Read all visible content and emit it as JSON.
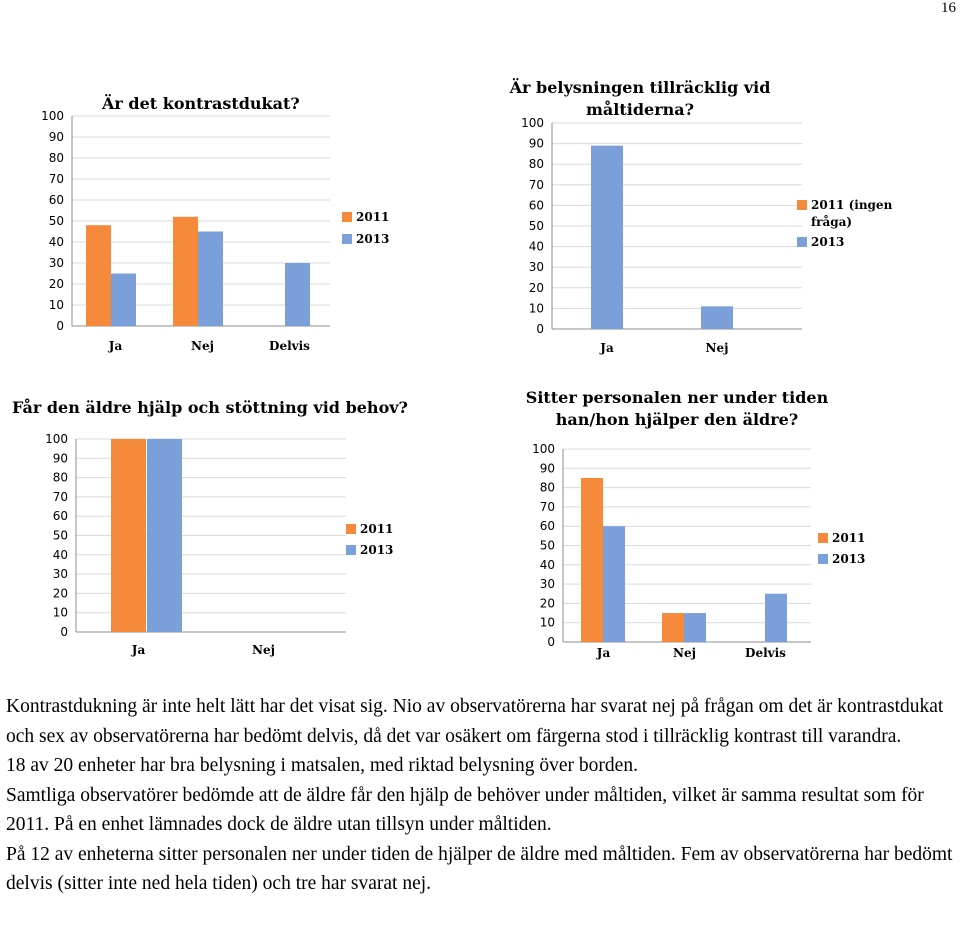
{
  "page": {
    "number": "16"
  },
  "colors": {
    "series2011": "#f58b3a",
    "series2013": "#7b9fd8"
  },
  "chart_data": [
    {
      "type": "bar",
      "title": "Är det kontrastdukat?",
      "categories": [
        "Ja",
        "Nej",
        "Delvis"
      ],
      "series": [
        {
          "name": "2011",
          "values": [
            48,
            52,
            null
          ]
        },
        {
          "name": "2013",
          "values": [
            25,
            45,
            30
          ]
        }
      ],
      "ylim": [
        0,
        100
      ],
      "yticks": [
        0,
        10,
        20,
        30,
        40,
        50,
        60,
        70,
        80,
        90,
        100
      ],
      "legend": "right"
    },
    {
      "type": "bar",
      "title": "Är belysningen tillräcklig vid måltiderna?",
      "categories": [
        "Ja",
        "Nej"
      ],
      "series": [
        {
          "name": "2011 (ingen fråga)",
          "values": [
            null,
            null
          ]
        },
        {
          "name": "2013",
          "values": [
            89,
            11
          ]
        }
      ],
      "ylim": [
        0,
        100
      ],
      "yticks": [
        0,
        10,
        20,
        30,
        40,
        50,
        60,
        70,
        80,
        90,
        100
      ],
      "legend": "right"
    },
    {
      "type": "bar",
      "title": "Får den äldre hjälp och stöttning vid behov?",
      "categories": [
        "Ja",
        "Nej"
      ],
      "series": [
        {
          "name": "2011",
          "values": [
            100,
            null
          ]
        },
        {
          "name": "2013",
          "values": [
            100,
            null
          ]
        }
      ],
      "ylim": [
        0,
        100
      ],
      "yticks": [
        0,
        10,
        20,
        30,
        40,
        50,
        60,
        70,
        80,
        90,
        100
      ],
      "legend": "right"
    },
    {
      "type": "bar",
      "title": "Sitter personalen ner under tiden han/hon hjälper den äldre?",
      "categories": [
        "Ja",
        "Nej",
        "Delvis"
      ],
      "series": [
        {
          "name": "2011",
          "values": [
            85,
            15,
            null
          ]
        },
        {
          "name": "2013",
          "values": [
            60,
            15,
            25
          ]
        }
      ],
      "ylim": [
        0,
        100
      ],
      "yticks": [
        0,
        10,
        20,
        30,
        40,
        50,
        60,
        70,
        80,
        90,
        100
      ],
      "legend": "right"
    }
  ],
  "paragraphs": [
    "Kontrastdukning är inte helt lätt har det visat sig.  Nio av observatörerna har svarat nej på frågan om det är kontrastdukat och sex av observatörerna har bedömt delvis, då det var osäkert om färgerna stod i tillräcklig kontrast till varandra.",
    "18 av 20 enheter har bra belysning i matsalen, med riktad belysning över borden.",
    "Samtliga observatörer bedömde att de äldre får den hjälp de behöver under måltiden, vilket är samma resultat som för 2011. På en enhet lämnades dock de äldre utan tillsyn under måltiden.",
    "På 12 av enheterna sitter personalen ner under tiden de hjälper de äldre med måltiden. Fem av observatörerna har bedömt delvis (sitter inte ned hela tiden) och tre har svarat nej."
  ]
}
